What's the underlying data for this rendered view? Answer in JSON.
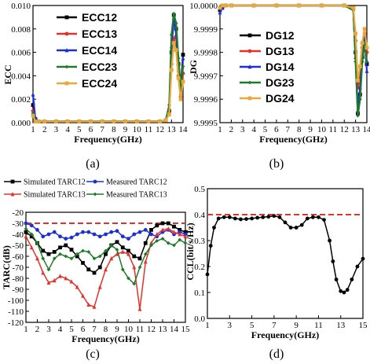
{
  "chart_data": [
    {
      "type": "line",
      "panel_label": "(a)",
      "xlabel": "Frequency(GHz)",
      "ylabel": "ECC",
      "xlim": [
        1,
        14
      ],
      "ylim": [
        0,
        0.01
      ],
      "x_ticks": [
        1,
        2,
        3,
        4,
        5,
        6,
        7,
        8,
        9,
        10,
        11,
        12,
        13,
        14
      ],
      "y_tick_labels": [
        "0.000",
        "0.002",
        "0.004",
        "0.006",
        "0.008",
        "0.010"
      ],
      "y_ticks": [
        0,
        0.002,
        0.004,
        0.006,
        0.008,
        0.01
      ],
      "legend_position": "top-left",
      "series": [
        {
          "name": "ECC12",
          "color": "#000000",
          "x": [
            1,
            1.2,
            1.5,
            2,
            3,
            4,
            5,
            6,
            7,
            8,
            9,
            10,
            11,
            12,
            12.5,
            12.8,
            13,
            13.2,
            13.4,
            13.6,
            13.8,
            14
          ],
          "y": [
            0.0015,
            0.0003,
            0.0001,
            0.0001,
            0.0001,
            0.0001,
            0.0001,
            0.0001,
            0.0001,
            0.0001,
            0.0001,
            0.0001,
            0.0001,
            0.0001,
            0.0002,
            0.001,
            0.006,
            0.0092,
            0.008,
            0.005,
            0.003,
            0.0058
          ]
        },
        {
          "name": "ECC13",
          "color": "#e8302a",
          "x": [
            1,
            1.2,
            1.5,
            2,
            3,
            4,
            5,
            6,
            7,
            8,
            9,
            10,
            11,
            12,
            12.5,
            12.8,
            13,
            13.2,
            13.4,
            13.6,
            13.8,
            14
          ],
          "y": [
            0.001,
            0.0002,
            0.0001,
            0.0001,
            0.0001,
            0.0001,
            0.0001,
            0.0001,
            0.0001,
            0.0001,
            0.0001,
            0.0001,
            0.0001,
            0.0001,
            0.0002,
            0.0008,
            0.005,
            0.0072,
            0.0065,
            0.004,
            0.0022,
            0.0042
          ]
        },
        {
          "name": "ECC14",
          "color": "#1c2fd6",
          "x": [
            1,
            1.2,
            1.5,
            2,
            3,
            4,
            5,
            6,
            7,
            8,
            9,
            10,
            11,
            12,
            12.5,
            12.8,
            13,
            13.2,
            13.4,
            13.6,
            13.8,
            14
          ],
          "y": [
            0.0024,
            0.0004,
            0.0001,
            0.0001,
            0.0001,
            0.0001,
            0.0001,
            0.0001,
            0.0001,
            0.0001,
            0.0001,
            0.0001,
            0.0001,
            0.0001,
            0.0002,
            0.0012,
            0.0065,
            0.009,
            0.0075,
            0.0045,
            0.0025,
            0.0055
          ]
        },
        {
          "name": "ECC23",
          "color": "#1f7a2c",
          "x": [
            1,
            1.2,
            1.5,
            2,
            3,
            4,
            5,
            6,
            7,
            8,
            9,
            10,
            11,
            12,
            12.5,
            12.8,
            13,
            13.2,
            13.4,
            13.6,
            13.8,
            14
          ],
          "y": [
            0.0008,
            0.0002,
            0.0001,
            0.0001,
            0.0001,
            0.0001,
            0.0001,
            0.0001,
            0.0001,
            0.0001,
            0.0001,
            0.0001,
            0.0001,
            0.0001,
            0.0002,
            0.0015,
            0.0075,
            0.0093,
            0.0085,
            0.0055,
            0.003,
            0.0048
          ]
        },
        {
          "name": "ECC24",
          "color": "#e8a93a",
          "x": [
            1,
            1.2,
            1.5,
            2,
            3,
            4,
            5,
            6,
            7,
            8,
            9,
            10,
            11,
            12,
            12.5,
            12.8,
            13,
            13.2,
            13.4,
            13.6,
            13.8,
            14
          ],
          "y": [
            0.0006,
            0.0001,
            0.0001,
            0.0001,
            0.0001,
            0.0001,
            0.0001,
            0.0001,
            0.0001,
            0.0001,
            0.0001,
            0.0001,
            0.0001,
            0.0001,
            0.0002,
            0.0007,
            0.0045,
            0.0068,
            0.0062,
            0.0038,
            0.002,
            0.0035
          ]
        }
      ]
    },
    {
      "type": "line",
      "panel_label": "(b)",
      "xlabel": "Frequency(GHz)",
      "ylabel": "DG",
      "xlim": [
        1,
        14
      ],
      "ylim": [
        9.9995,
        10.0
      ],
      "x_ticks": [
        1,
        2,
        3,
        4,
        5,
        6,
        7,
        8,
        9,
        10,
        11,
        12,
        13,
        14
      ],
      "y_tick_labels": [
        "9.9995",
        "9.9996",
        "9.9997",
        "9.9998",
        "9.9999",
        "10.0000"
      ],
      "y_ticks": [
        9.9995,
        9.9996,
        9.9997,
        9.9998,
        9.9999,
        10.0
      ],
      "legend_position": "center-left",
      "series": [
        {
          "name": "DG12",
          "color": "#000000",
          "x": [
            1,
            1.2,
            1.5,
            2,
            4,
            6,
            8,
            10,
            12,
            12.8,
            13,
            13.2,
            13.4,
            13.6,
            13.8,
            14
          ],
          "y": [
            9.99998,
            9.99999,
            10.0,
            10.0,
            10.0,
            10.0,
            10.0,
            10.0,
            10.0,
            9.99999,
            9.9998,
            9.99954,
            9.99962,
            9.99978,
            9.99985,
            9.99975
          ]
        },
        {
          "name": "DG13",
          "color": "#e8302a",
          "x": [
            1,
            1.2,
            1.5,
            2,
            4,
            6,
            8,
            10,
            12,
            12.8,
            13,
            13.2,
            13.4,
            13.6,
            13.8,
            14
          ],
          "y": [
            9.99999,
            10.0,
            10.0,
            10.0,
            10.0,
            10.0,
            10.0,
            10.0,
            10.0,
            9.99999,
            9.99985,
            9.99965,
            9.9997,
            9.99982,
            9.99988,
            9.9998
          ]
        },
        {
          "name": "DG14",
          "color": "#1c2fd6",
          "x": [
            1,
            1.2,
            1.5,
            2,
            4,
            6,
            8,
            10,
            12,
            12.8,
            13,
            13.2,
            13.4,
            13.6,
            13.8,
            14
          ],
          "y": [
            9.99997,
            9.99999,
            10.0,
            10.0,
            10.0,
            10.0,
            10.0,
            10.0,
            10.0,
            9.99999,
            9.99978,
            9.99955,
            9.99965,
            9.9998,
            9.99986,
            9.99972
          ]
        },
        {
          "name": "DG23",
          "color": "#1f7a2c",
          "x": [
            1,
            1.2,
            1.5,
            2,
            4,
            6,
            8,
            10,
            12,
            12.8,
            13,
            13.2,
            13.4,
            13.6,
            13.8,
            14
          ],
          "y": [
            9.99999,
            10.0,
            10.0,
            10.0,
            10.0,
            10.0,
            10.0,
            10.0,
            10.0,
            9.99998,
            9.99976,
            9.99953,
            9.9996,
            9.99976,
            9.99984,
            9.99976
          ]
        },
        {
          "name": "DG24",
          "color": "#e8a93a",
          "x": [
            1,
            1.2,
            1.5,
            2,
            4,
            6,
            8,
            10,
            12,
            12.8,
            13,
            13.2,
            13.4,
            13.6,
            13.8,
            14
          ],
          "y": [
            9.99999,
            10.0,
            10.0,
            10.0,
            10.0,
            10.0,
            10.0,
            10.0,
            10.0,
            9.99999,
            9.99988,
            9.99968,
            9.99974,
            9.99984,
            9.9999,
            9.99982
          ]
        }
      ]
    },
    {
      "type": "line",
      "panel_label": "(c)",
      "xlabel": "Frequency(GHz)",
      "ylabel": "TARC(dB)",
      "xlim": [
        1,
        15
      ],
      "ylim": [
        -120,
        -20
      ],
      "x_ticks": [
        1,
        2,
        3,
        4,
        5,
        6,
        7,
        8,
        9,
        10,
        11,
        12,
        13,
        14,
        15
      ],
      "y_ticks": [
        -120,
        -110,
        -100,
        -90,
        -80,
        -70,
        -60,
        -50,
        -40,
        -30,
        -20
      ],
      "legend_position": "top",
      "reference_line": {
        "y": -30,
        "color": "#e8302a",
        "style": "dashed"
      },
      "series": [
        {
          "name": "Simulated TARC12",
          "color": "#000000",
          "x": [
            1,
            1.5,
            2,
            2.5,
            3,
            3.5,
            4,
            4.5,
            5,
            5.5,
            6,
            6.5,
            7,
            7.5,
            8,
            8.5,
            9,
            9.5,
            10,
            10.5,
            11,
            11.5,
            12,
            12.5,
            13,
            13.5,
            14,
            14.5,
            15
          ],
          "y": [
            -38,
            -42,
            -48,
            -55,
            -58,
            -56,
            -52,
            -50,
            -54,
            -60,
            -66,
            -72,
            -75,
            -70,
            -58,
            -50,
            -47,
            -52,
            -55,
            -60,
            -62,
            -48,
            -36,
            -32,
            -30,
            -30,
            -33,
            -36,
            -38
          ]
        },
        {
          "name": "Measured TARC12",
          "color": "#1c2fd6",
          "x": [
            1,
            1.5,
            2,
            2.5,
            3,
            3.5,
            4,
            4.5,
            5,
            5.5,
            6,
            6.5,
            7,
            7.5,
            8,
            8.5,
            9,
            9.5,
            10,
            10.5,
            11,
            11.5,
            12,
            12.5,
            13,
            13.5,
            14,
            14.5,
            15
          ],
          "y": [
            -30,
            -32,
            -36,
            -42,
            -40,
            -38,
            -42,
            -44,
            -43,
            -40,
            -38,
            -38,
            -40,
            -42,
            -40,
            -38,
            -37,
            -42,
            -44,
            -40,
            -38,
            -36,
            -40,
            -42,
            -38,
            -36,
            -40,
            -38,
            -40
          ]
        },
        {
          "name": "Simulated TARC13",
          "color": "#e8302a",
          "x": [
            1,
            1.5,
            2,
            2.5,
            3,
            3.5,
            4,
            4.5,
            5,
            5.5,
            6,
            6.5,
            7,
            7.5,
            8,
            8.5,
            9,
            9.5,
            10,
            10.5,
            11,
            11.5,
            12,
            12.5,
            13,
            13.5,
            14,
            14.5,
            15
          ],
          "y": [
            -42,
            -52,
            -62,
            -75,
            -84,
            -82,
            -78,
            -80,
            -83,
            -88,
            -96,
            -104,
            -106,
            -88,
            -72,
            -62,
            -58,
            -56,
            -58,
            -70,
            -108,
            -65,
            -48,
            -40,
            -36,
            -35,
            -38,
            -40,
            -42
          ]
        },
        {
          "name": "Measured TARC13",
          "color": "#1f7a2c",
          "x": [
            1,
            1.5,
            2,
            2.5,
            3,
            3.5,
            4,
            4.5,
            5,
            5.5,
            6,
            6.5,
            7,
            7.5,
            8,
            8.5,
            9,
            9.5,
            10,
            10.5,
            11,
            11.5,
            12,
            12.5,
            13,
            13.5,
            14,
            14.5,
            15
          ],
          "y": [
            -35,
            -40,
            -48,
            -62,
            -72,
            -62,
            -58,
            -60,
            -62,
            -58,
            -55,
            -56,
            -62,
            -60,
            -55,
            -50,
            -54,
            -72,
            -80,
            -85,
            -70,
            -58,
            -50,
            -46,
            -44,
            -48,
            -50,
            -45,
            -48
          ]
        }
      ]
    },
    {
      "type": "line",
      "panel_label": "(d)",
      "xlabel": "Frequency(GHz)",
      "ylabel": "CCL(bit/s/Hz)",
      "xlim": [
        1,
        15
      ],
      "ylim": [
        0,
        0.5
      ],
      "x_ticks": [
        1,
        3,
        5,
        7,
        9,
        11,
        13,
        15
      ],
      "y_tick_labels": [
        "0.0",
        "0.1",
        "0.2",
        "0.3",
        "0.4",
        "0.5"
      ],
      "y_ticks": [
        0,
        0.1,
        0.2,
        0.3,
        0.4,
        0.5
      ],
      "reference_line": {
        "y": 0.4,
        "color": "#e8302a",
        "style": "dashed"
      },
      "series": [
        {
          "name": "",
          "color": "#000000",
          "x": [
            1,
            1.3,
            1.6,
            2,
            2.5,
            3,
            3.5,
            4,
            4.5,
            5,
            5.5,
            6,
            6.5,
            7,
            7.5,
            8,
            8.5,
            9,
            9.5,
            10,
            10.5,
            11,
            11.5,
            12,
            12.3,
            12.6,
            13,
            13.3,
            13.6,
            14,
            14.5,
            15
          ],
          "y": [
            0.17,
            0.28,
            0.35,
            0.385,
            0.39,
            0.39,
            0.385,
            0.382,
            0.383,
            0.385,
            0.388,
            0.39,
            0.392,
            0.395,
            0.39,
            0.37,
            0.35,
            0.35,
            0.36,
            0.385,
            0.39,
            0.39,
            0.38,
            0.3,
            0.22,
            0.15,
            0.105,
            0.1,
            0.11,
            0.15,
            0.2,
            0.23
          ]
        }
      ]
    }
  ]
}
